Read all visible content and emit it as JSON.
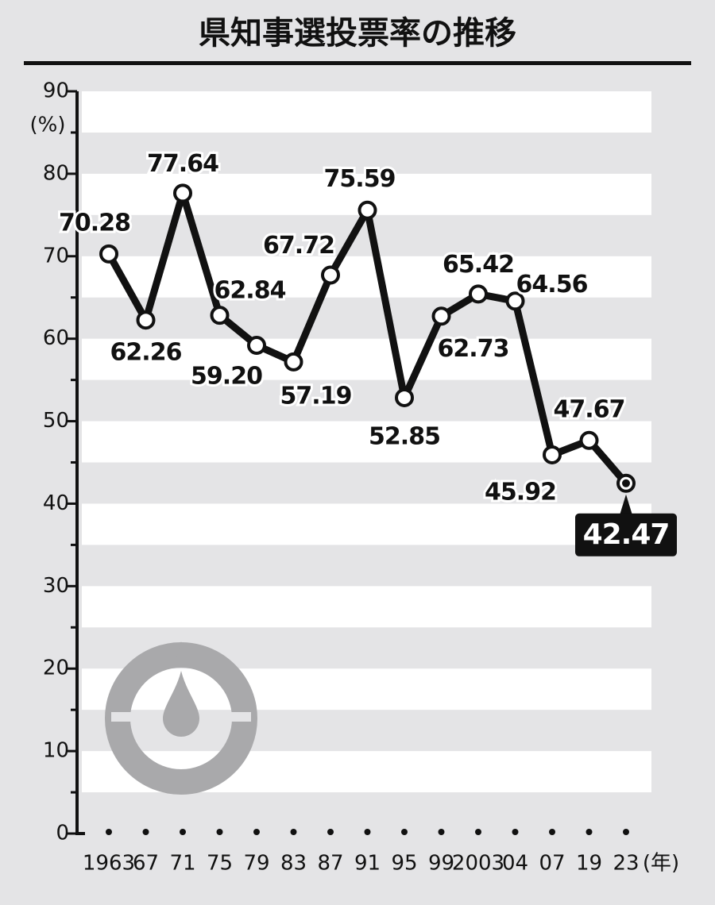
{
  "chart_data": {
    "type": "line",
    "title": "県知事選投票率の推移",
    "y_unit": "(%)",
    "x_unit": "(年)",
    "categories": [
      "1963",
      "67",
      "71",
      "75",
      "79",
      "83",
      "87",
      "91",
      "95",
      "99",
      "2003",
      "04",
      "07",
      "19",
      "23"
    ],
    "series": [
      {
        "name": "投票率",
        "color": "#111111",
        "values": [
          70.28,
          62.26,
          77.64,
          62.84,
          59.2,
          57.19,
          67.72,
          75.59,
          52.85,
          62.73,
          65.42,
          64.56,
          45.92,
          47.67,
          42.47
        ],
        "value_labels": [
          "70.28",
          "62.26",
          "77.64",
          "62.84",
          "59.20",
          "57.19",
          "67.72",
          "75.59",
          "52.85",
          "62.73",
          "65.42",
          "64.56",
          "45.92",
          "47.67",
          "42.47"
        ]
      }
    ],
    "ylim": [
      0,
      90
    ],
    "yticks": [
      0,
      10,
      20,
      30,
      40,
      50,
      60,
      70,
      80,
      90
    ]
  }
}
